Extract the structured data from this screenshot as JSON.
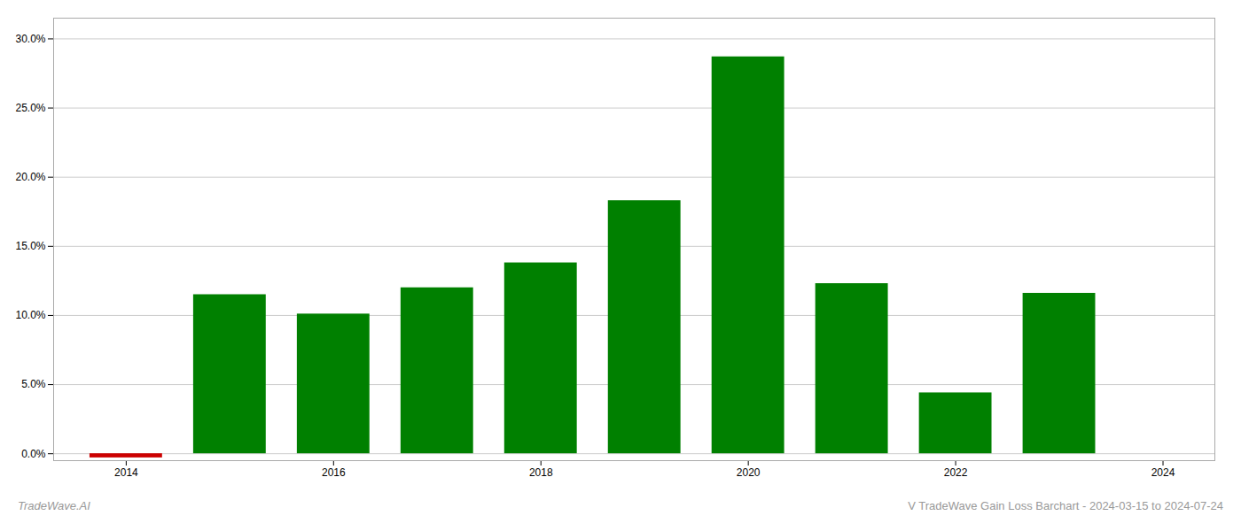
{
  "chart_data": {
    "type": "bar",
    "x": [
      2014,
      2015,
      2016,
      2017,
      2018,
      2019,
      2020,
      2021,
      2022,
      2023
    ],
    "values": [
      -0.003,
      0.115,
      0.101,
      0.12,
      0.138,
      0.183,
      0.287,
      0.123,
      0.044,
      0.116
    ],
    "colors": [
      "#cc0000",
      "#008000",
      "#008000",
      "#008000",
      "#008000",
      "#008000",
      "#008000",
      "#008000",
      "#008000",
      "#008000"
    ],
    "xlim": [
      2013.3,
      2024.5
    ],
    "xticks": [
      2014,
      2016,
      2018,
      2020,
      2022,
      2024
    ],
    "ylim": [
      -0.005,
      0.315
    ],
    "yticks": [
      {
        "value": 0.0,
        "label": "0.0%"
      },
      {
        "value": 0.05,
        "label": "5.0%"
      },
      {
        "value": 0.1,
        "label": "10.0%"
      },
      {
        "value": 0.15,
        "label": "15.0%"
      },
      {
        "value": 0.2,
        "label": "20.0%"
      },
      {
        "value": 0.25,
        "label": "25.0%"
      },
      {
        "value": 0.3,
        "label": "30.0%"
      }
    ],
    "grid": true,
    "annotations": [
      "TradeWave.AI",
      "V TradeWave Gain Loss Barchart - 2024-03-15 to 2024-07-24"
    ]
  }
}
